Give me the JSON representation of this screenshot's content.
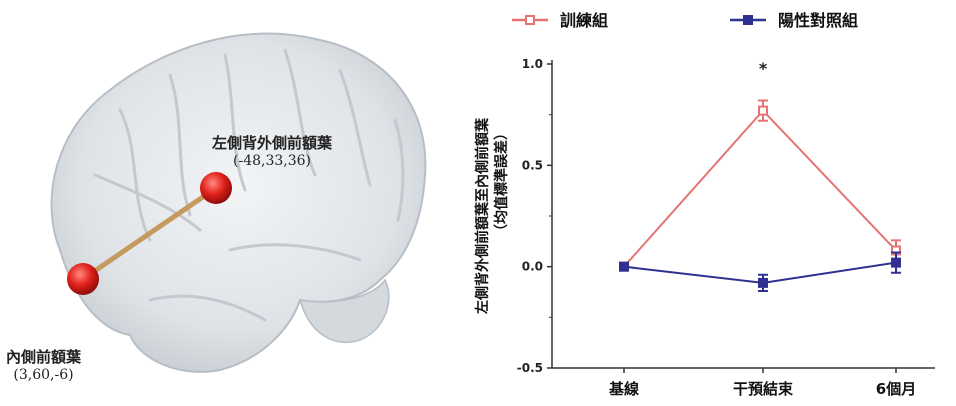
{
  "brain": {
    "region_dlpfc": {
      "name": "左側背外側前額葉",
      "coords": "(-48,33,36)"
    },
    "region_mpfc": {
      "name": "內側前額葉",
      "coords": "(3,60,-6)"
    }
  },
  "chart_data": {
    "type": "line",
    "categories": [
      "基線",
      "干預結束",
      "6個月"
    ],
    "ylabel": "左側背外側前額葉至內側前額葉（均值標準誤差）",
    "ylim": [
      -0.5,
      1.0
    ],
    "yticks": [
      "1.0",
      "0.5",
      "0.0",
      "-0.5"
    ],
    "legend_position": "top",
    "series": [
      {
        "name": "訓練組",
        "values": [
          0.0,
          0.77,
          0.08
        ],
        "errors": [
          0.0,
          0.05,
          0.05
        ],
        "color": "#e57373",
        "marker": "square-open"
      },
      {
        "name": "陽性對照組",
        "values": [
          0.0,
          -0.08,
          0.02
        ],
        "errors": [
          0.0,
          0.04,
          0.05
        ],
        "color": "#2e3192",
        "marker": "square-filled"
      }
    ],
    "annotations": [
      {
        "category": "干預結束",
        "text": "*"
      }
    ]
  }
}
